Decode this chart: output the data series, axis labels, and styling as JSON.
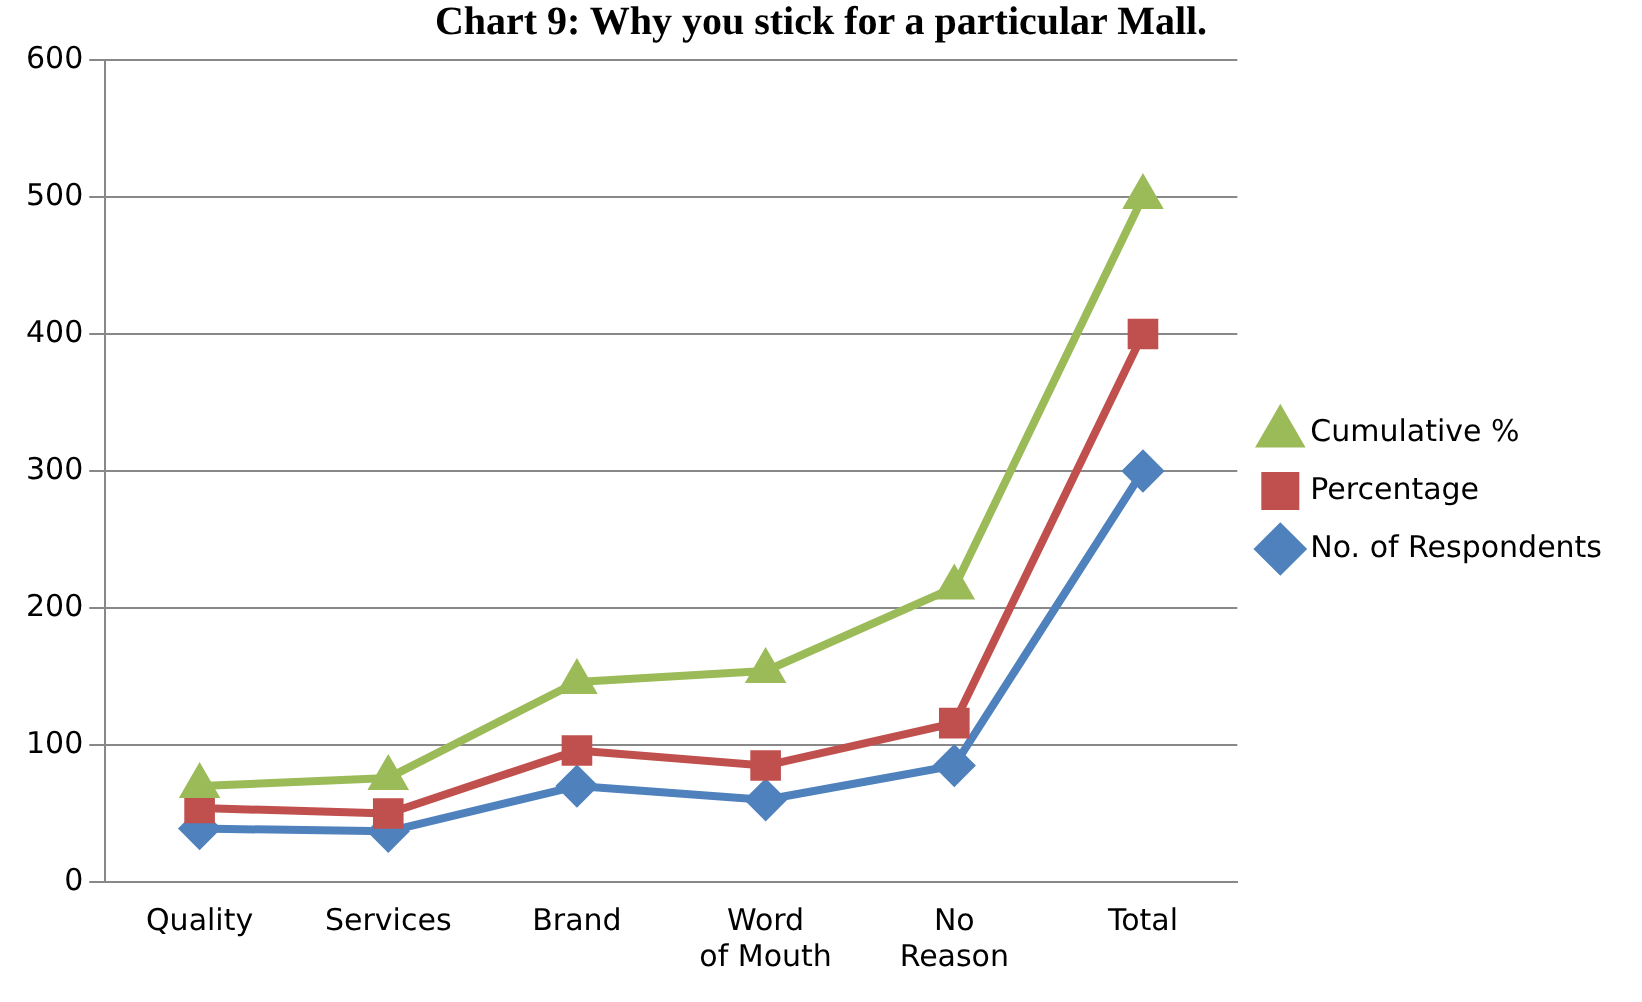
{
  "chart_data": {
    "type": "line",
    "title": "Chart 9: Why you stick for a particular Mall.",
    "categories": [
      "Quality",
      "Services",
      "Brand",
      "Word of Mouth",
      "No Reason",
      "Total"
    ],
    "series": [
      {
        "name": "Cumulative %",
        "color": "#9bbb59",
        "marker": "triangle",
        "values": [
          70,
          76,
          146,
          154,
          215,
          500
        ]
      },
      {
        "name": "Percentage",
        "color": "#c0504d",
        "marker": "square",
        "values": [
          54,
          50,
          96,
          85,
          116,
          400
        ]
      },
      {
        "name": "No. of Respondents",
        "color": "#4f81bd",
        "marker": "diamond",
        "values": [
          39,
          37,
          70,
          60,
          85,
          300
        ]
      }
    ],
    "ylim": [
      0,
      600
    ],
    "yticks": [
      0,
      100,
      200,
      300,
      400,
      500,
      600
    ],
    "grid": "y",
    "legend": "right",
    "line_style": "solid"
  }
}
